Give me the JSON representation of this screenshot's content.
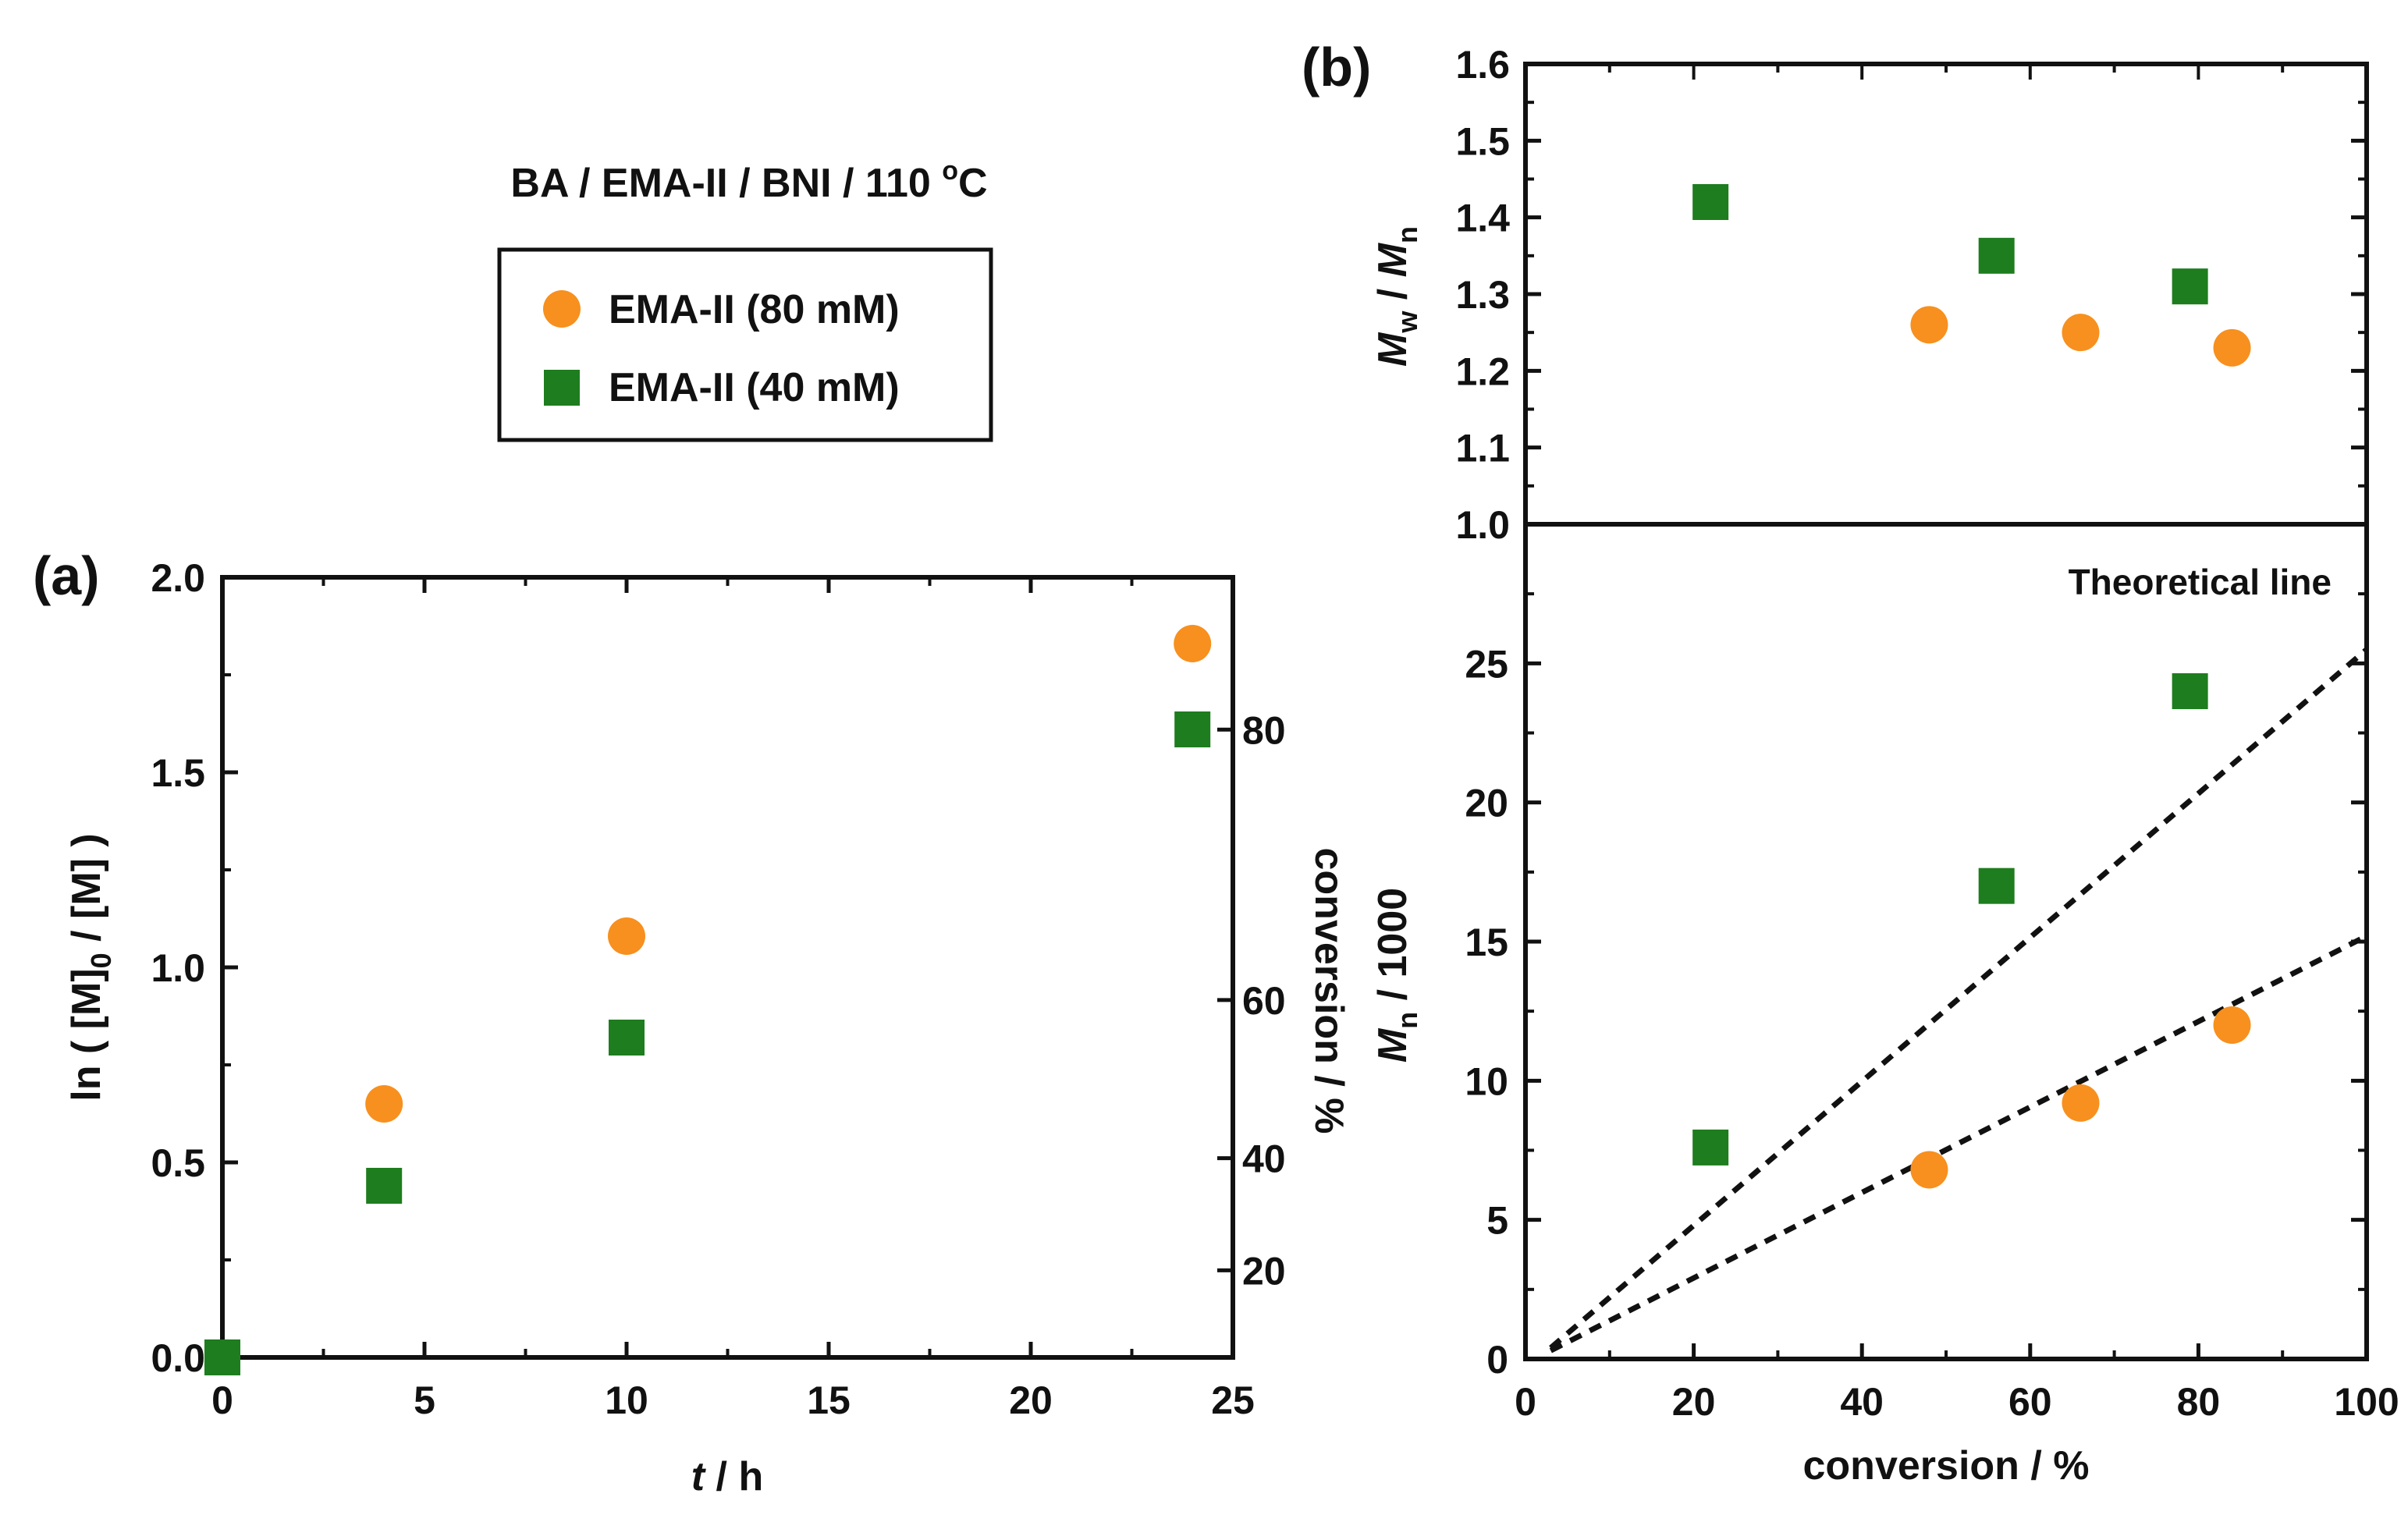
{
  "figure": {
    "title_main": "BA / EMA-II / BNI / 110 ",
    "title_super": "o",
    "title_unit": "C",
    "legend": [
      {
        "label": "EMA-II (80 mM)",
        "marker": "circle",
        "color": "#f7901e"
      },
      {
        "label": "EMA-II (40 mM)",
        "marker": "square",
        "color": "#1e7d1e"
      }
    ]
  },
  "chart_data": [
    {
      "id": "a",
      "panel_label": "(a)",
      "type": "scatter",
      "xlabel": "t / h",
      "xlabel_italic": "t",
      "xlabel_rest": " / h",
      "ylabel": "ln ( [M]0 / [M] )",
      "ylabel_parts": {
        "pre": "ln ( [M]",
        "sub": "0",
        "post": " / [M] )"
      },
      "y2label": "conversion / %",
      "xlim": [
        0,
        25
      ],
      "ylim": [
        0,
        2.0
      ],
      "xticks": [
        0,
        5,
        10,
        15,
        20,
        25
      ],
      "yticks": [
        0.0,
        0.5,
        1.0,
        1.5,
        2.0
      ],
      "ytick_labels": [
        "0.0",
        "0.5",
        "1.0",
        "1.5",
        "2.0"
      ],
      "y2ticks": [
        20,
        40,
        60,
        80
      ],
      "series": [
        {
          "name": "EMA-II (80 mM)",
          "marker": "circle",
          "color": "#f7901e",
          "x": [
            4,
            10,
            24
          ],
          "y": [
            0.65,
            1.08,
            1.83
          ]
        },
        {
          "name": "EMA-II (40 mM)",
          "marker": "square",
          "color": "#1e7d1e",
          "x": [
            0,
            4,
            10,
            24
          ],
          "y": [
            0.0,
            0.44,
            0.82,
            1.61
          ]
        }
      ]
    },
    {
      "id": "b_top",
      "panel_label": "(b)",
      "type": "scatter",
      "ylabel": "Mw / Mn",
      "ylabel_parts": {
        "m1": "M",
        "s1": "w",
        "mid": " / ",
        "m2": "M",
        "s2": "n"
      },
      "xlim": [
        0,
        100
      ],
      "ylim": [
        1.0,
        1.6
      ],
      "yticks": [
        1.0,
        1.1,
        1.2,
        1.3,
        1.4,
        1.5,
        1.6
      ],
      "ytick_labels": [
        "1.0",
        "1.1",
        "1.2",
        "1.3",
        "1.4",
        "1.5",
        "1.6"
      ],
      "series": [
        {
          "name": "EMA-II (80 mM)",
          "marker": "circle",
          "color": "#f7901e",
          "x": [
            48,
            66,
            84
          ],
          "y": [
            1.26,
            1.25,
            1.23
          ]
        },
        {
          "name": "EMA-II (40 mM)",
          "marker": "square",
          "color": "#1e7d1e",
          "x": [
            22,
            56,
            79
          ],
          "y": [
            1.42,
            1.35,
            1.31
          ]
        }
      ]
    },
    {
      "id": "b_bottom",
      "type": "scatter",
      "xlabel": "conversion / %",
      "ylabel": "Mn / 1000",
      "ylabel_parts": {
        "m": "M",
        "s": "n",
        "post": " / 1000"
      },
      "annotation": "Theoretical line",
      "xlim": [
        0,
        100
      ],
      "ylim": [
        0,
        30
      ],
      "xticks": [
        0,
        20,
        40,
        60,
        80,
        100
      ],
      "yticks": [
        0,
        5,
        10,
        15,
        20,
        25
      ],
      "theoretical_lines": [
        {
          "name": "40 mM theory",
          "x": [
            3,
            100
          ],
          "y": [
            0.4,
            25.5
          ]
        },
        {
          "name": "80 mM theory",
          "x": [
            3,
            100
          ],
          "y": [
            0.3,
            15.2
          ]
        }
      ],
      "series": [
        {
          "name": "EMA-II (80 mM)",
          "marker": "circle",
          "color": "#f7901e",
          "x": [
            48,
            66,
            84
          ],
          "y": [
            6.8,
            9.2,
            12.0
          ]
        },
        {
          "name": "EMA-II (40 mM)",
          "marker": "square",
          "color": "#1e7d1e",
          "x": [
            22,
            56,
            79
          ],
          "y": [
            7.6,
            17.0,
            24.0
          ]
        }
      ]
    }
  ]
}
